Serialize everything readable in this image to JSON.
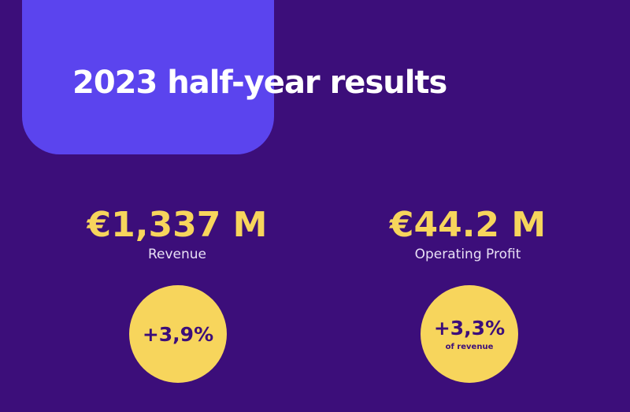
{
  "header": {
    "title": "2023 half-year results"
  },
  "metrics": [
    {
      "value": "€1,337 M",
      "label": "Revenue",
      "badge": "+3,9%"
    },
    {
      "value": "€44.2 M",
      "label": "Operating Profit",
      "badge": "+3,3%",
      "badge_note": "of revenue"
    }
  ]
}
